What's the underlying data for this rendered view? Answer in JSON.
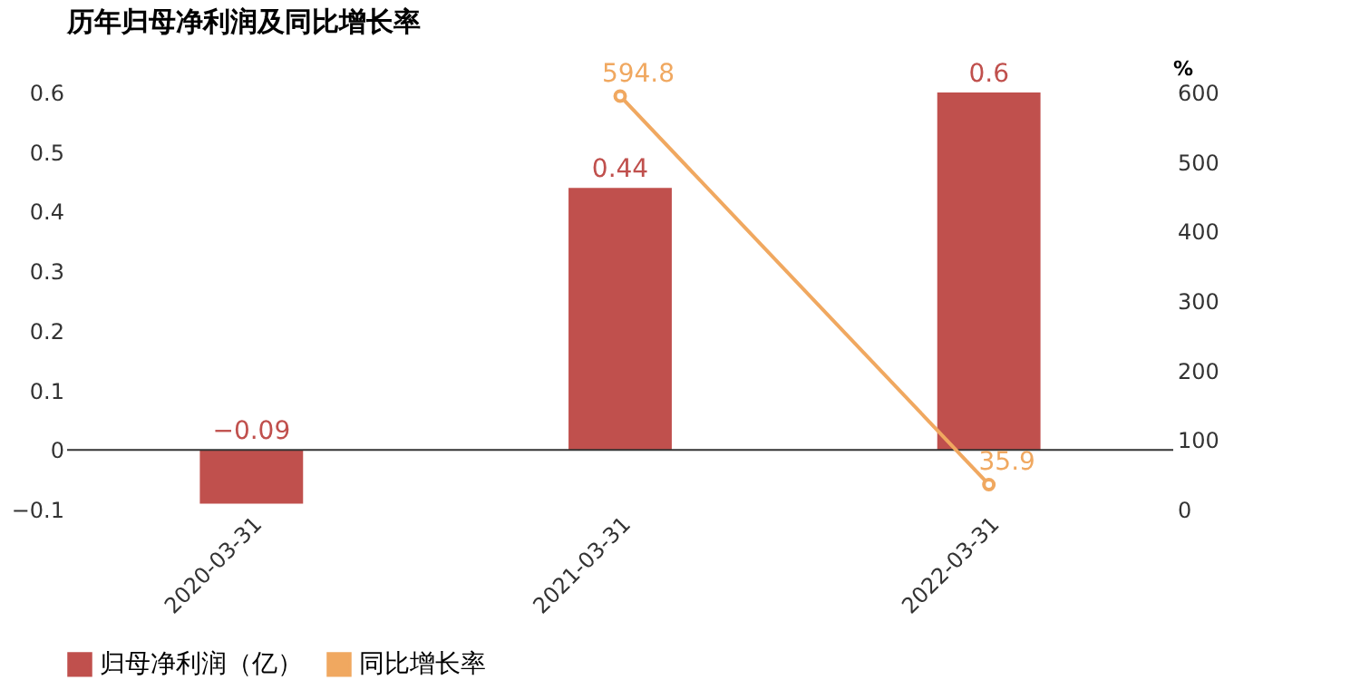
{
  "chart_data": {
    "type": "bar",
    "title": "历年归母净利润及同比增长率",
    "categories": [
      "2020-03-31",
      "2021-03-31",
      "2022-03-31"
    ],
    "series": [
      {
        "name": "归母净利润（亿）",
        "color": "#c0504d",
        "values": [
          -0.09,
          0.44,
          0.6
        ]
      },
      {
        "name": "同比增长率",
        "type": "line",
        "axis": "y2",
        "color": "#f0a860",
        "marker": "circle",
        "values": [
          null,
          594.8,
          35.9
        ]
      }
    ],
    "ylim": [
      -0.1,
      0.6
    ],
    "yticks": [
      -0.1,
      0,
      0.1,
      0.2,
      0.3,
      0.4,
      0.5,
      0.6
    ],
    "y2lim": [
      0,
      600
    ],
    "y2ticks": [
      0,
      100,
      200,
      300,
      400,
      500,
      600
    ],
    "y2label": "%",
    "ref_lines": [
      {
        "axis": "y",
        "value": 0,
        "color": "#333333"
      }
    ],
    "data_labels": true,
    "legend": "bottom",
    "grid": false
  }
}
